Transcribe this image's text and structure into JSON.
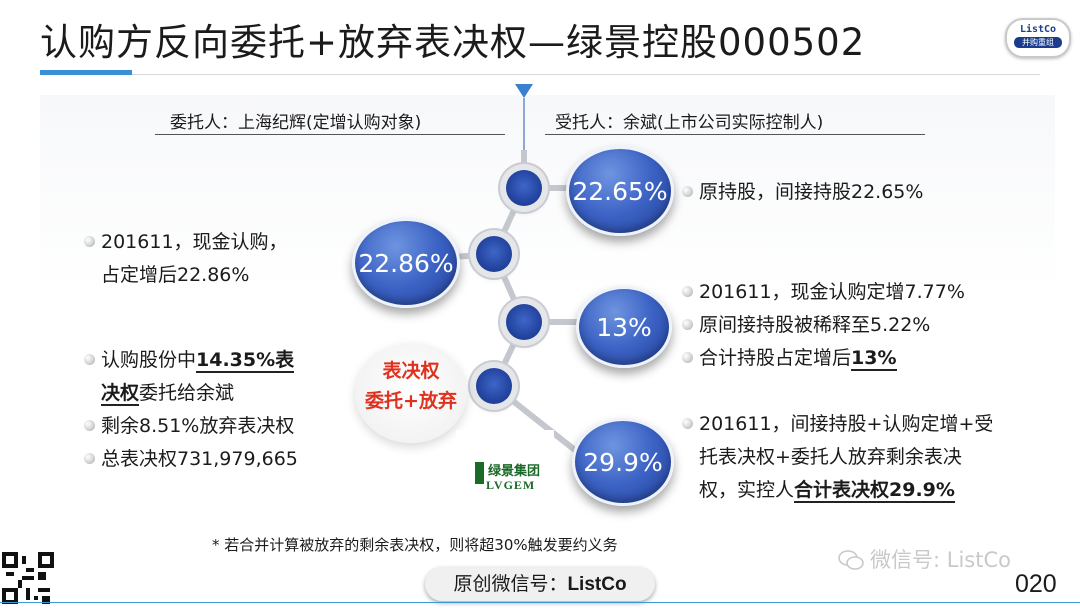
{
  "title": "认购方反向委托+放弃表决权—绿景控股000502",
  "logo": {
    "top": "ListCo",
    "bottom": "并购重组"
  },
  "left_header": "委托人：上海纪辉(定增认购对象)",
  "right_header": "受托人：余斌(上市公司实际控制人)",
  "circles": {
    "c1": "22.65%",
    "c2": "22.86%",
    "c3": "13%",
    "c4": "29.9%"
  },
  "center_label": {
    "line1": "表决权",
    "line2": "委托+放弃"
  },
  "left_items": {
    "a1": "201611，现金认购，",
    "a2": "占定增后22.86%",
    "b1_pre": "认购股份中",
    "b1_bold": "14.35%表",
    "b2_bold": "决权",
    "b2_post": "委托给余斌",
    "c": "剩余8.51%放弃表决权",
    "d": "总表决权731,979,665"
  },
  "right_items": {
    "r1": "原持股，间接持股22.65%",
    "r2": "201611，现金认购定增7.77%",
    "r3": "原间接持股被稀释至5.22%",
    "r4_pre": "合计持股占定增后",
    "r4_bold": "13%",
    "r5": "201611，间接持股+认购定增+受",
    "r6": "托表决权+委托人放弃剩余表决",
    "r7_pre": "权，实控人",
    "r7_bold": "合计表决权29.9%"
  },
  "company_logo": {
    "cn": "绿景集团",
    "en": "LVGEM"
  },
  "footnote": "* 若合并计算被放弃的剩余表决权，则将超30%触发要约义务",
  "footer_pill": {
    "label": "原创微信号：",
    "id": "ListCo"
  },
  "watermark": "微信号: ListCo",
  "page_number": "020",
  "colors": {
    "accent": "#3a8fd6",
    "circle": "#3b62c4",
    "highlight": "#e0301e"
  }
}
